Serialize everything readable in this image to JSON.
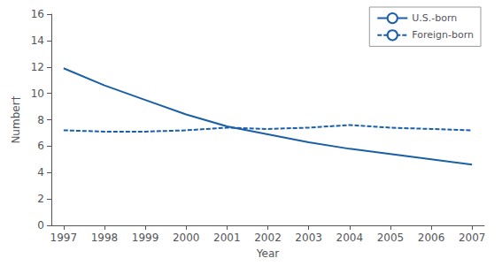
{
  "chart_data": {
    "type": "line",
    "xlabel": "Year",
    "ylabel": "Number†",
    "x": [
      1997,
      1998,
      1999,
      2000,
      2001,
      2002,
      2003,
      2004,
      2005,
      2006,
      2007
    ],
    "series": [
      {
        "name": "U.S.-born",
        "color": "#1a5fa8",
        "line_style": "solid",
        "values": [
          11.9,
          10.6,
          9.5,
          8.4,
          7.5,
          6.9,
          6.3,
          5.8,
          5.4,
          5.0,
          4.6
        ]
      },
      {
        "name": "Foreign-born",
        "color": "#1a5fa8",
        "line_style": "dashed",
        "values": [
          7.2,
          7.1,
          7.1,
          7.2,
          7.4,
          7.3,
          7.4,
          7.6,
          7.4,
          7.3,
          7.2
        ]
      }
    ],
    "xlim": [
      1996.7,
      2007.3
    ],
    "xticks": [
      1997,
      1998,
      1999,
      2000,
      2001,
      2002,
      2003,
      2004,
      2005,
      2006,
      2007
    ],
    "ylim": [
      0,
      16
    ],
    "yticks": [
      0,
      2,
      4,
      6,
      8,
      10,
      12,
      14,
      16
    ],
    "grid": false,
    "legend": "upper right"
  }
}
